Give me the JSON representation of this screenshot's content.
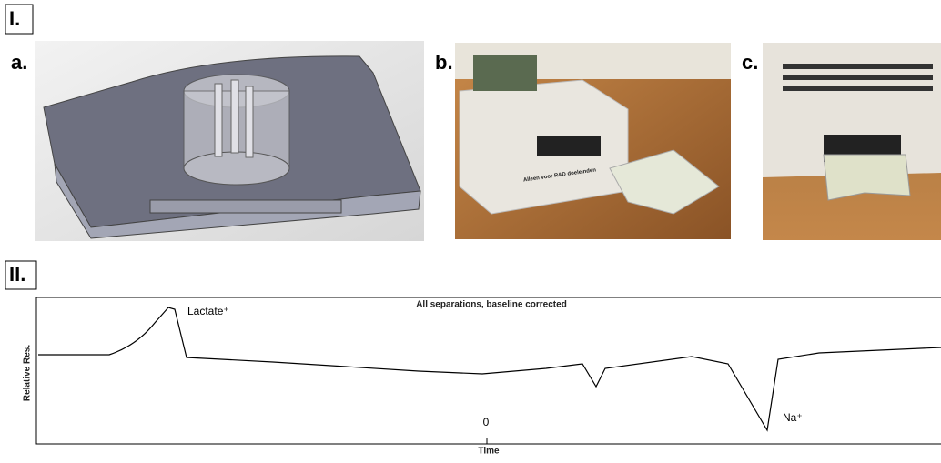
{
  "panel_1": {
    "label": "I.",
    "subpanels": [
      {
        "label": "a."
      },
      {
        "label": "b.",
        "photo_text": "Alleen voor R&D doeleinden"
      },
      {
        "label": "c."
      }
    ]
  },
  "panel_2": {
    "label": "II.",
    "title": "All separations, baseline corrected",
    "y_label": "Relative Res.",
    "x_label": "Time",
    "x_tick": "0",
    "annotations": [
      "Lactate⁺",
      "Na⁺"
    ]
  }
}
